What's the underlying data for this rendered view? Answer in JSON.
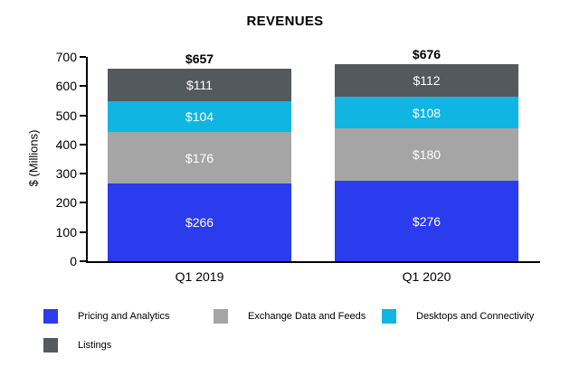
{
  "title": "REVENUES",
  "chart_data": {
    "type": "bar",
    "stacked": true,
    "title": "REVENUES",
    "ylabel": "$ (Millions)",
    "ylim": [
      0,
      700
    ],
    "yticks": [
      0,
      100,
      200,
      300,
      400,
      500,
      600,
      700
    ],
    "grid": false,
    "legend_position": "bottom",
    "categories": [
      "Q1 2019",
      "Q1 2020"
    ],
    "series": [
      {
        "name": "Pricing and Analytics",
        "color": "#2B3BEE",
        "values": [
          266,
          276
        ],
        "labels": [
          "$266",
          "$276"
        ]
      },
      {
        "name": "Exchange Data and Feeds",
        "color": "#A5A5A5",
        "values": [
          176,
          180
        ],
        "labels": [
          "$176",
          "$180"
        ]
      },
      {
        "name": "Desktops and Connectivity",
        "color": "#10B5E2",
        "values": [
          104,
          108
        ],
        "labels": [
          "$104",
          "$108"
        ]
      },
      {
        "name": "Listings",
        "color": "#54595D",
        "values": [
          111,
          112
        ],
        "labels": [
          "$111",
          "$112"
        ]
      }
    ],
    "totals": [
      "$657",
      "$676"
    ],
    "axis_color": "#000000",
    "label_color_inside": "#FFFFFF",
    "label_color_outside": "#000000"
  }
}
